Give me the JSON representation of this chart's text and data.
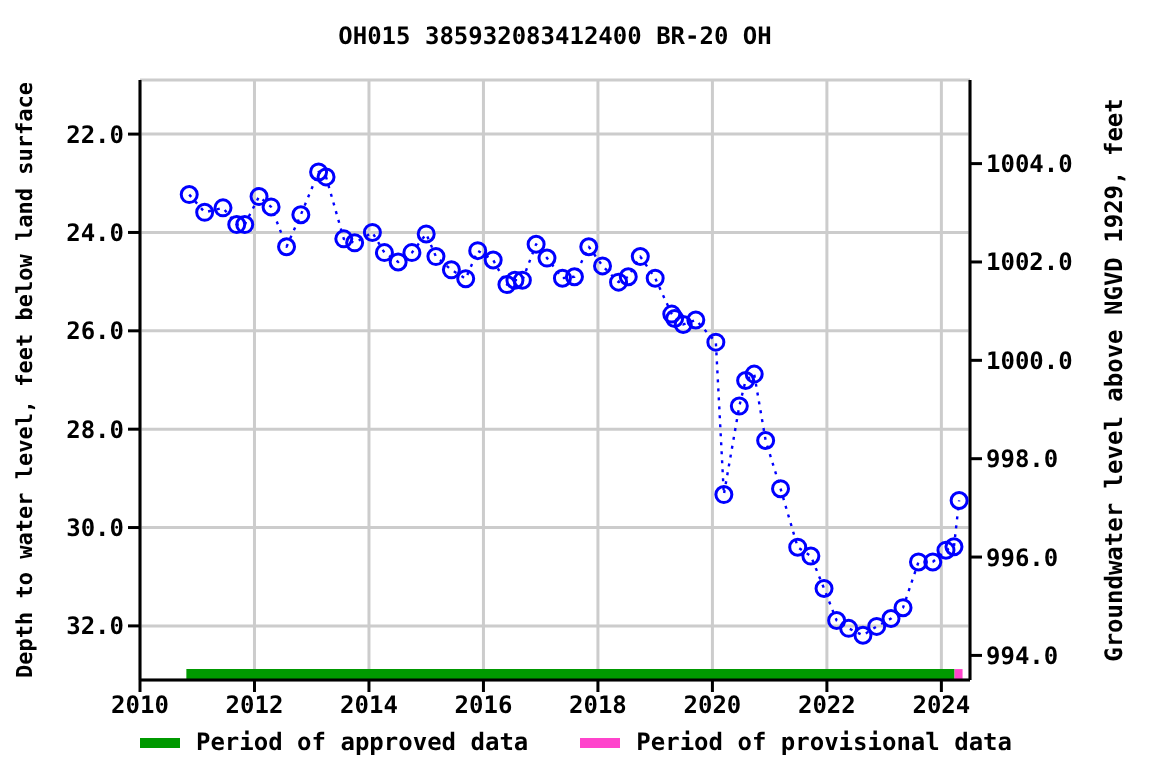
{
  "chart_data": {
    "type": "line",
    "title": "OH015 385932083412400 BR-20 OH",
    "ylabel": "Depth to water level, feet below land surface",
    "y2label": "Groundwater level above NGVD 1929, feet",
    "xlim": [
      2010,
      2024.5
    ],
    "xticks": [
      2010,
      2012,
      2014,
      2016,
      2018,
      2020,
      2022,
      2024
    ],
    "ylim": [
      33.1,
      20.9
    ],
    "yticks": [
      {
        "value": 22,
        "label": "22.0"
      },
      {
        "value": 24,
        "label": "24.0"
      },
      {
        "value": 26,
        "label": "26.0"
      },
      {
        "value": 28,
        "label": "28.0"
      },
      {
        "value": 30,
        "label": "30.0"
      },
      {
        "value": 32,
        "label": "32.0"
      }
    ],
    "y2lim": [
      993.5,
      1005.7
    ],
    "y2ticks": [
      {
        "value": 994,
        "label": "994.0"
      },
      {
        "value": 996,
        "label": "996.0"
      },
      {
        "value": 998,
        "label": "998.0"
      },
      {
        "value": 1000,
        "label": "1000.0"
      },
      {
        "value": 1002,
        "label": "1002.0"
      },
      {
        "value": 1004,
        "label": "1004.0"
      }
    ],
    "grid": true,
    "legend": "bottom",
    "series": [
      {
        "color": "#0000ff",
        "marker": "circle",
        "line_style": "dotted",
        "x": [
          2010.86,
          2011.13,
          2011.45,
          2011.69,
          2011.83,
          2012.08,
          2012.29,
          2012.56,
          2012.81,
          2013.12,
          2013.25,
          2013.56,
          2013.75,
          2014.06,
          2014.27,
          2014.51,
          2014.75,
          2015.0,
          2015.17,
          2015.44,
          2015.69,
          2015.9,
          2016.17,
          2016.41,
          2016.55,
          2016.68,
          2016.92,
          2017.11,
          2017.38,
          2017.59,
          2017.84,
          2018.08,
          2018.36,
          2018.53,
          2018.74,
          2019.0,
          2019.29,
          2019.34,
          2019.49,
          2019.71,
          2020.06,
          2020.2,
          2020.47,
          2020.58,
          2020.73,
          2020.93,
          2021.19,
          2021.49,
          2021.72,
          2021.95,
          2022.17,
          2022.38,
          2022.63,
          2022.87,
          2023.12,
          2023.33,
          2023.6,
          2023.85,
          2024.08,
          2024.22,
          2024.31
        ],
        "values": [
          23.23,
          23.59,
          23.5,
          23.84,
          23.84,
          23.27,
          23.48,
          24.29,
          23.64,
          22.77,
          22.87,
          24.13,
          24.21,
          24.0,
          24.41,
          24.6,
          24.41,
          24.03,
          24.49,
          24.76,
          24.94,
          24.37,
          24.56,
          25.06,
          24.97,
          24.97,
          24.24,
          24.52,
          24.93,
          24.9,
          24.29,
          24.68,
          25.01,
          24.9,
          24.49,
          24.93,
          25.66,
          25.75,
          25.87,
          25.78,
          26.23,
          29.33,
          27.53,
          27.01,
          26.88,
          28.23,
          29.21,
          30.4,
          30.58,
          31.24,
          31.89,
          32.05,
          32.19,
          32.01,
          31.85,
          31.63,
          30.7,
          30.7,
          30.46,
          30.39,
          29.45
        ]
      },
      {
        "name": "Period of approved data",
        "color": "#009900",
        "marker": "none",
        "line_style": "solid",
        "x": [
          2010.81,
          2024.23
        ],
        "values": [
          32.98,
          32.98
        ]
      },
      {
        "name": "Period of provisional data",
        "color": "#ff44cc",
        "marker": "none",
        "line_style": "solid",
        "x": [
          2024.23,
          2024.37
        ],
        "values": [
          32.98,
          32.98
        ]
      }
    ]
  }
}
